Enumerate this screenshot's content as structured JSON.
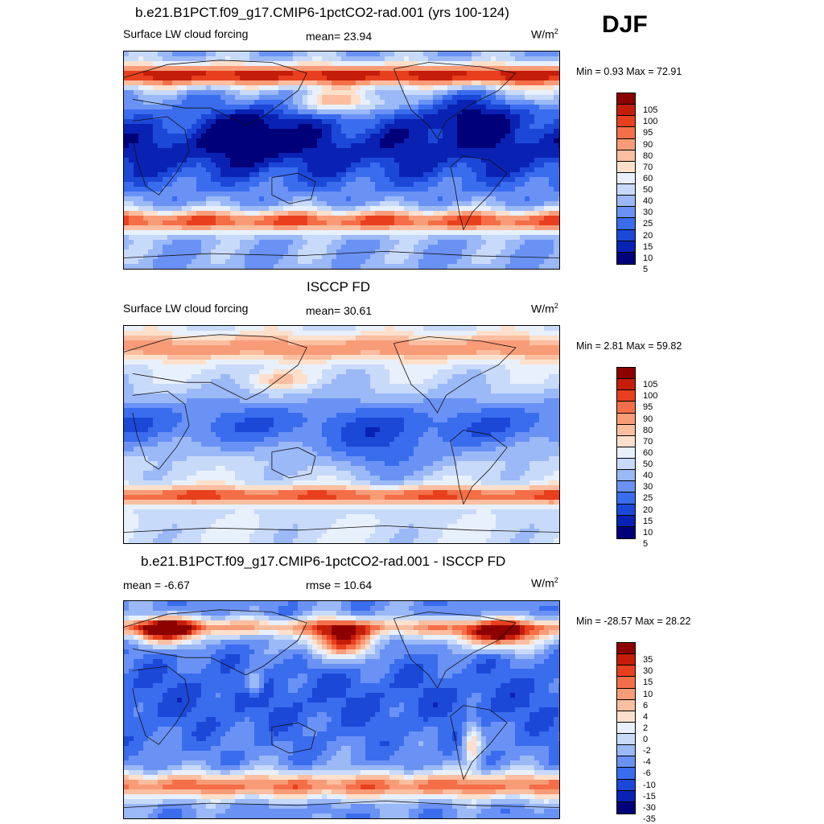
{
  "season": "DJF",
  "colors": {
    "abs_scale": [
      "#00007a",
      "#0a22b4",
      "#1c48d8",
      "#3a6cee",
      "#6a92f4",
      "#9bb8f7",
      "#c8daf9",
      "#e8f0fc",
      "#fde0cc",
      "#fbbea0",
      "#f89c78",
      "#f46f48",
      "#e8401e",
      "#c41d0a",
      "#8c0000"
    ],
    "diff_scale": [
      "#00007a",
      "#0a22b4",
      "#1c48d8",
      "#3a6cee",
      "#6a92f4",
      "#9bb8f7",
      "#c8daf9",
      "#e8f0fc",
      "#fde0cc",
      "#fbbea0",
      "#f89c78",
      "#f46f48",
      "#e8401e",
      "#c41d0a",
      "#8c0000"
    ],
    "land": "#111111"
  },
  "panels": [
    {
      "title": "b.e21.B1PCT.f09_g17.CMIP6-1pctCO2-rad.001 (yrs 100-124)",
      "left_label": "Surface LW cloud forcing",
      "center_label": "mean=  23.94",
      "units": "W/m",
      "units_sup": "2",
      "min_max": "Min =   0.93 Max =  72.91",
      "colorbar_labels": [
        "105",
        "100",
        "95",
        "90",
        "80",
        "70",
        "60",
        "50",
        "40",
        "30",
        "25",
        "20",
        "15",
        "10",
        "5"
      ],
      "field": "model"
    },
    {
      "title": "ISCCP FD",
      "left_label": "Surface LW cloud forcing",
      "center_label": "mean=  30.61",
      "units": "W/m",
      "units_sup": "2",
      "min_max": "Min =   2.81 Max =  59.82",
      "colorbar_labels": [
        "105",
        "100",
        "95",
        "90",
        "80",
        "70",
        "60",
        "50",
        "40",
        "30",
        "25",
        "20",
        "15",
        "10",
        "5"
      ],
      "field": "obs"
    },
    {
      "title": "b.e21.B1PCT.f09_g17.CMIP6-1pctCO2-rad.001 - ISCCP FD",
      "left_label": "mean =  -6.67",
      "center_label": "rmse =  10.64",
      "units": "W/m",
      "units_sup": "2",
      "min_max": "Min = -28.57 Max =  28.22",
      "colorbar_labels": [
        "35",
        "30",
        "15",
        "10",
        "6",
        "4",
        "2",
        "0",
        "-2",
        "-4",
        "-6",
        "-10",
        "-15",
        "-30",
        "-35"
      ],
      "field": "diff"
    }
  ]
}
